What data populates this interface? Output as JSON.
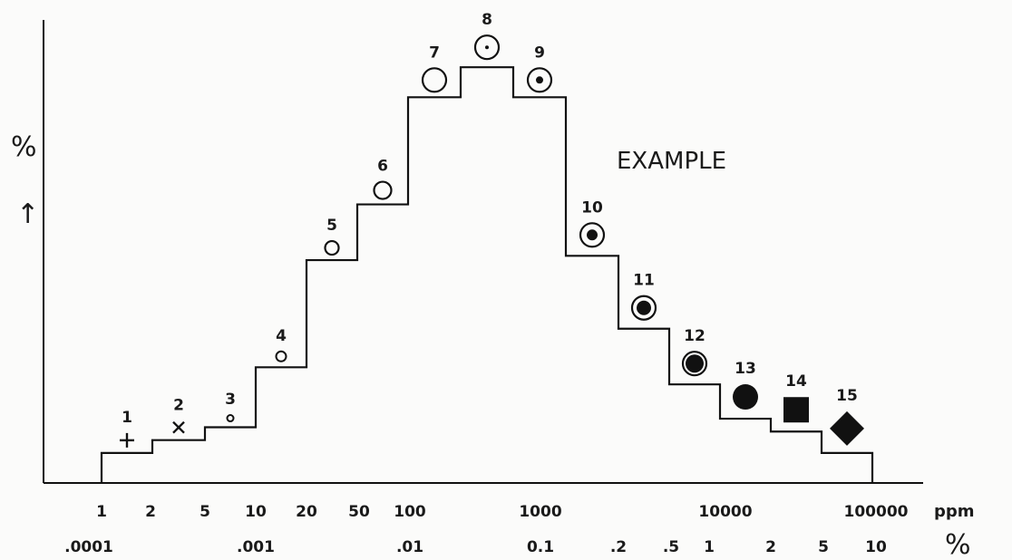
{
  "chart_data": {
    "type": "step",
    "annotation": "EXAMPLE",
    "y_axis": {
      "label": "%",
      "arrow": "↑"
    },
    "x_units": {
      "ppm_label": "ppm",
      "percent_label": "%"
    },
    "ppm_ticks": [
      "1",
      "2",
      "5",
      "10",
      "20",
      "50",
      "100",
      "1000",
      "10000",
      "100000"
    ],
    "percent_ticks": [
      ".0001",
      ".001",
      ".01",
      "0.1",
      ".2",
      ".5",
      "1",
      "2",
      "5",
      "10"
    ],
    "steps": [
      {
        "n": "1",
        "symbol": "plus",
        "level": 0.07
      },
      {
        "n": "2",
        "symbol": "cross",
        "level": 0.1
      },
      {
        "n": "3",
        "symbol": "tiny-circle",
        "level": 0.13
      },
      {
        "n": "4",
        "symbol": "small-circle",
        "level": 0.27
      },
      {
        "n": "5",
        "symbol": "circle",
        "level": 0.52
      },
      {
        "n": "6",
        "symbol": "circle",
        "level": 0.65
      },
      {
        "n": "7",
        "symbol": "large-circle",
        "level": 0.9
      },
      {
        "n": "8",
        "symbol": "circle-dot",
        "level": 0.97
      },
      {
        "n": "9",
        "symbol": "circle-dot-large",
        "level": 0.9
      },
      {
        "n": "10",
        "symbol": "circle-filled-center",
        "level": 0.53
      },
      {
        "n": "11",
        "symbol": "circle-filled-center",
        "level": 0.36
      },
      {
        "n": "12",
        "symbol": "circle-nearly-filled",
        "level": 0.23
      },
      {
        "n": "13",
        "symbol": "filled-circle",
        "level": 0.15
      },
      {
        "n": "14",
        "symbol": "filled-square",
        "level": 0.12
      },
      {
        "n": "15",
        "symbol": "filled-diamond",
        "level": 0.07
      }
    ]
  }
}
